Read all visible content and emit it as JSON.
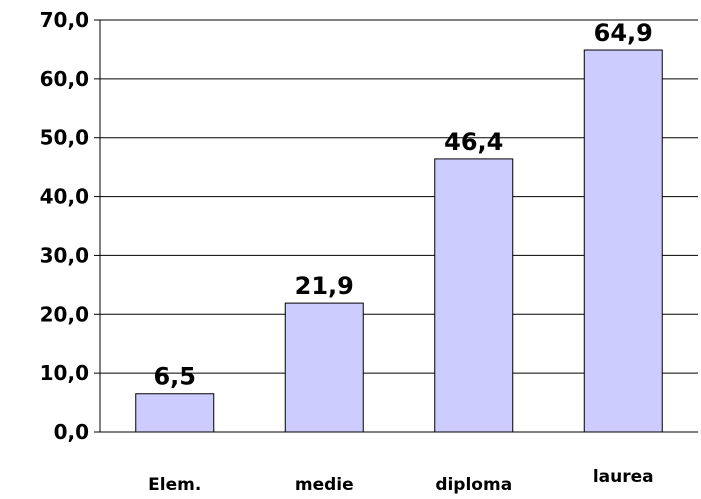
{
  "chart_data": {
    "type": "bar",
    "title": "",
    "xlabel": "",
    "ylabel": "",
    "categories": [
      "Elem.",
      "medie",
      "diploma",
      "laurea"
    ],
    "values": [
      6.5,
      21.9,
      46.4,
      64.9
    ],
    "value_labels": [
      "6,5",
      "21,9",
      "46,4",
      "64,9"
    ],
    "yticks": [
      0,
      10,
      20,
      30,
      40,
      50,
      60,
      70
    ],
    "ytick_labels": [
      "0,0",
      "10,0",
      "20,0",
      "30,0",
      "40,0",
      "50,0",
      "60,0",
      "70,0"
    ],
    "ylim": [
      0,
      70
    ],
    "grid": true,
    "legend": "none",
    "colors": {
      "bar_fill": "#ccccff",
      "bar_stroke": "#000000",
      "grid": "#000000"
    }
  }
}
